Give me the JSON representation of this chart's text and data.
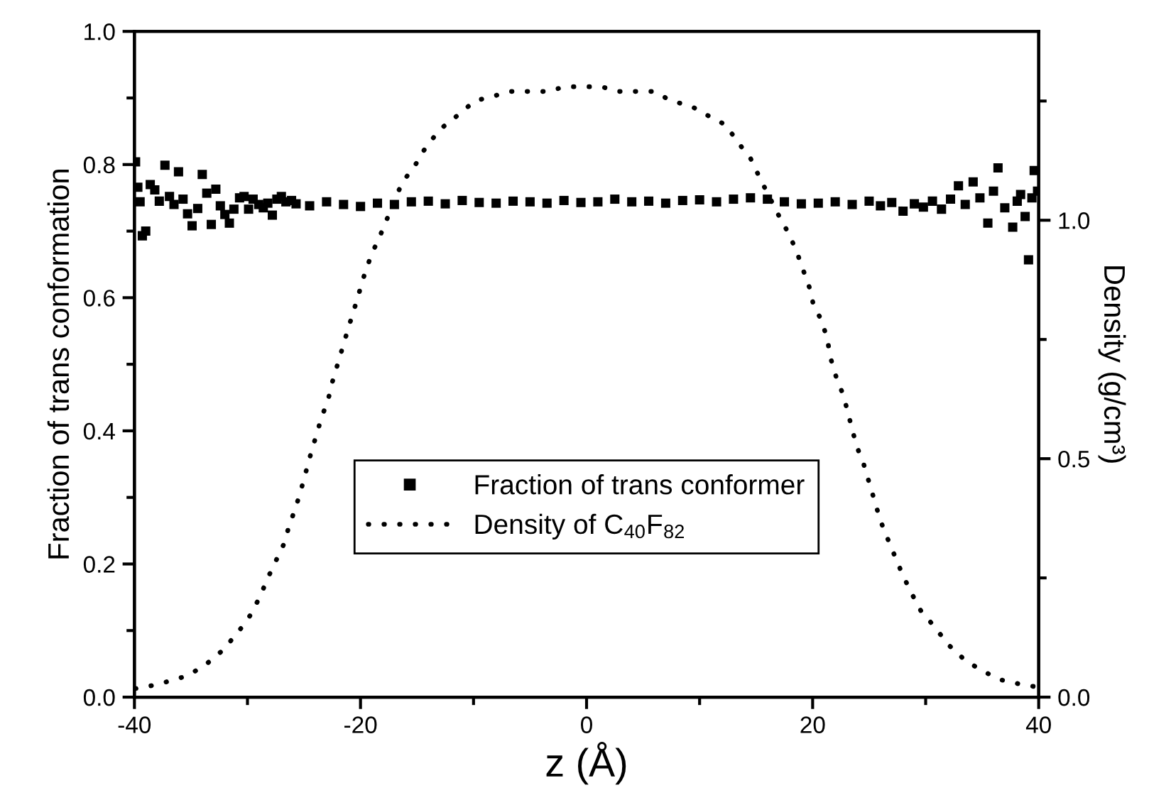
{
  "chart_data": {
    "type": "scatter",
    "xlabel": "z (Å)",
    "ylabel": "Fraction of trans conformation",
    "y2label": "Density (g/cm³)",
    "xlim": [
      -40,
      40
    ],
    "xticks": [
      -40,
      -20,
      0,
      20,
      40
    ],
    "ylim": [
      0.0,
      1.0
    ],
    "yticks": [
      {
        "value": 0,
        "label": "0.0"
      },
      0.2,
      0.4,
      0.6,
      0.8,
      {
        "value": 1,
        "label": "1.0"
      }
    ],
    "y2lim": [
      0.0,
      1.396
    ],
    "y2ticks": [
      {
        "value": 0,
        "label": "0.0"
      },
      0.5,
      {
        "value": 1,
        "label": "1.0"
      }
    ],
    "grid": false,
    "legend": "bottom",
    "series": [
      {
        "name": "Fraction of trans conformer",
        "marker": "square",
        "color": "#000000",
        "x": [
          -39.9,
          -39.7,
          -39.5,
          -39.3,
          -39.0,
          -38.6,
          -38.2,
          -37.8,
          -37.3,
          -36.9,
          -36.5,
          -36.1,
          -35.7,
          -35.3,
          -34.9,
          -34.4,
          -34.0,
          -33.6,
          -33.2,
          -32.8,
          -32.4,
          -32.0,
          -31.6,
          -31.2,
          -30.7,
          -30.3,
          -29.9,
          -29.5,
          -29.0,
          -28.6,
          -28.2,
          -27.8,
          -27.4,
          -27.0,
          -26.6,
          -26.1,
          -25.7,
          -24.5,
          -23.0,
          -21.5,
          -20.0,
          -18.5,
          -17.0,
          -15.5,
          -14.0,
          -12.5,
          -11.0,
          -9.5,
          -8.0,
          -6.5,
          -5.0,
          -3.5,
          -2.0,
          -0.5,
          1.0,
          2.5,
          4.0,
          5.5,
          7.0,
          8.5,
          10.0,
          11.5,
          13.0,
          14.5,
          16.0,
          17.5,
          19.0,
          20.5,
          22.0,
          23.5,
          25.0,
          26.0,
          27.0,
          28.0,
          29.0,
          29.8,
          30.6,
          31.4,
          32.2,
          32.9,
          33.5,
          34.2,
          34.8,
          35.5,
          36.0,
          36.4,
          37.0,
          37.7,
          38.1,
          38.4,
          38.8,
          39.1,
          39.4,
          39.6,
          39.9
        ],
        "values": [
          0.804,
          0.766,
          0.744,
          0.693,
          0.7,
          0.77,
          0.762,
          0.745,
          0.799,
          0.752,
          0.74,
          0.789,
          0.748,
          0.726,
          0.708,
          0.734,
          0.785,
          0.757,
          0.71,
          0.763,
          0.738,
          0.725,
          0.712,
          0.733,
          0.75,
          0.752,
          0.733,
          0.748,
          0.74,
          0.735,
          0.742,
          0.724,
          0.748,
          0.752,
          0.744,
          0.746,
          0.741,
          0.738,
          0.744,
          0.74,
          0.737,
          0.742,
          0.74,
          0.744,
          0.745,
          0.741,
          0.746,
          0.743,
          0.742,
          0.745,
          0.744,
          0.742,
          0.746,
          0.743,
          0.744,
          0.748,
          0.744,
          0.745,
          0.742,
          0.746,
          0.747,
          0.744,
          0.748,
          0.75,
          0.748,
          0.744,
          0.741,
          0.742,
          0.744,
          0.74,
          0.745,
          0.738,
          0.743,
          0.73,
          0.741,
          0.736,
          0.745,
          0.733,
          0.748,
          0.768,
          0.74,
          0.774,
          0.75,
          0.712,
          0.76,
          0.795,
          0.735,
          0.706,
          0.745,
          0.755,
          0.722,
          0.657,
          0.75,
          0.791,
          0.76
        ]
      },
      {
        "name": "Density of C$_{40}$F$_{82}$",
        "type": "line",
        "axis": "y2",
        "line_style": "dotted",
        "marker": "none",
        "color": "#000000",
        "x": [
          -39.9,
          -38.5,
          -37.0,
          -35.3,
          -33.7,
          -32.2,
          -30.8,
          -29.8,
          -28.9,
          -28.2,
          -27.4,
          -26.8,
          -26.3,
          -25.7,
          -25.2,
          -24.4,
          -23.9,
          -23.4,
          -22.9,
          -22.5,
          -22.0,
          -21.5,
          -21.0,
          -20.6,
          -20.1,
          -19.6,
          -19.0,
          -18.4,
          -17.7,
          -17.0,
          -16.3,
          -15.3,
          -14.3,
          -13.0,
          -11.4,
          -9.9,
          -8.3,
          -6.7,
          -5.0,
          -3.5,
          -1.9,
          -0.3,
          1.3,
          2.9,
          4.4,
          6.0,
          7.5,
          9.2,
          10.7,
          12.3,
          13.5,
          14.5,
          15.3,
          17.0,
          17.7,
          18.5,
          19.1,
          19.7,
          20.1,
          20.8,
          21.3,
          21.6,
          22.1,
          22.6,
          23.1,
          23.5,
          24.0,
          24.5,
          25.0,
          25.5,
          26.0,
          26.5,
          27.2,
          27.9,
          28.7,
          29.6,
          30.7,
          32.0,
          33.5,
          35.1,
          36.7,
          38.4,
          39.9
        ],
        "values": [
          0.018,
          0.024,
          0.033,
          0.045,
          0.068,
          0.098,
          0.137,
          0.17,
          0.21,
          0.25,
          0.29,
          0.32,
          0.36,
          0.4,
          0.44,
          0.51,
          0.55,
          0.59,
          0.62,
          0.66,
          0.7,
          0.74,
          0.78,
          0.81,
          0.85,
          0.89,
          0.93,
          0.96,
          1.0,
          1.04,
          1.08,
          1.11,
          1.15,
          1.19,
          1.22,
          1.25,
          1.26,
          1.27,
          1.27,
          1.27,
          1.28,
          1.28,
          1.28,
          1.27,
          1.27,
          1.27,
          1.25,
          1.24,
          1.22,
          1.2,
          1.16,
          1.13,
          1.09,
          1.01,
          0.98,
          0.94,
          0.9,
          0.86,
          0.82,
          0.79,
          0.75,
          0.71,
          0.67,
          0.64,
          0.6,
          0.56,
          0.52,
          0.49,
          0.45,
          0.41,
          0.37,
          0.34,
          0.3,
          0.26,
          0.22,
          0.18,
          0.15,
          0.11,
          0.077,
          0.054,
          0.036,
          0.027,
          0.021
        ]
      }
    ]
  }
}
